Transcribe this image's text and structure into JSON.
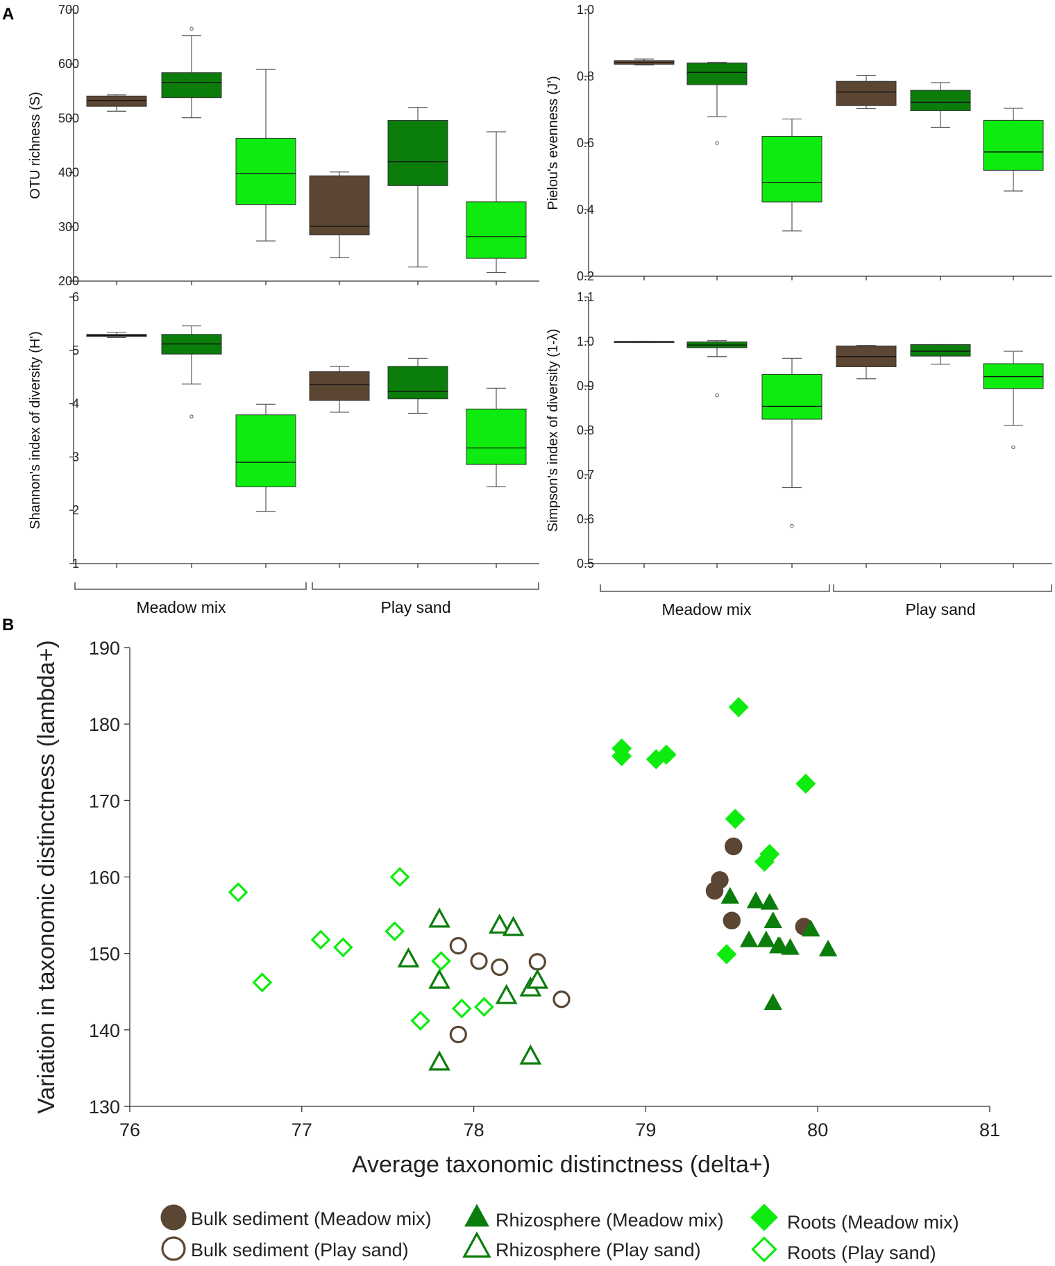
{
  "panel_labels": {
    "a": "A",
    "b": "B"
  },
  "groups": [
    "Meadow mix",
    "Play sand"
  ],
  "colors": {
    "bulk": "#5a4632",
    "rhizosphere": "#0b7d0b",
    "roots": "#0eeb0e",
    "axis": "#333333"
  },
  "chart_data": [
    {
      "id": "otu",
      "type": "box",
      "ylabel": "OTU richness (S)",
      "ylim": [
        200,
        700
      ],
      "yticks": [
        "200",
        "300",
        "400",
        "500",
        "600",
        "700"
      ],
      "tick_values": [
        200,
        300,
        400,
        500,
        600,
        700
      ],
      "boxes": [
        {
          "group": "Meadow mix",
          "category": "Bulk sediment",
          "min": 513,
          "q1": 522,
          "median": 533,
          "q3": 541,
          "max": 543,
          "outliers": []
        },
        {
          "group": "Meadow mix",
          "category": "Rhizosphere",
          "min": 501,
          "q1": 538,
          "median": 566,
          "q3": 584,
          "max": 652,
          "outliers": [
            665
          ]
        },
        {
          "group": "Meadow mix",
          "category": "Roots",
          "min": 274,
          "q1": 341,
          "median": 398,
          "q3": 463,
          "max": 590,
          "outliers": []
        },
        {
          "group": "Play sand",
          "category": "Bulk sediment",
          "min": 243,
          "q1": 285,
          "median": 301,
          "q3": 394,
          "max": 401,
          "outliers": []
        },
        {
          "group": "Play sand",
          "category": "Rhizosphere",
          "min": 226,
          "q1": 376,
          "median": 420,
          "q3": 496,
          "max": 520,
          "outliers": []
        },
        {
          "group": "Play sand",
          "category": "Roots",
          "min": 216,
          "q1": 242,
          "median": 282,
          "q3": 346,
          "max": 475,
          "outliers": []
        }
      ]
    },
    {
      "id": "pielou",
      "type": "box",
      "ylabel": "Pielou's evenness (J')",
      "ylim": [
        0.2,
        1.0
      ],
      "yticks": [
        "0.2",
        "0.4",
        "0.6",
        "0.8",
        "1.0"
      ],
      "tick_values": [
        0.2,
        0.4,
        0.6,
        0.8,
        1.0
      ],
      "boxes": [
        {
          "group": "Meadow mix",
          "category": "Bulk sediment",
          "min": 0.834,
          "q1": 0.836,
          "median": 0.842,
          "q3": 0.847,
          "max": 0.852,
          "outliers": []
        },
        {
          "group": "Meadow mix",
          "category": "Rhizosphere",
          "min": 0.679,
          "q1": 0.775,
          "median": 0.812,
          "q3": 0.84,
          "max": 0.842,
          "outliers": [
            0.6
          ]
        },
        {
          "group": "Meadow mix",
          "category": "Roots",
          "min": 0.336,
          "q1": 0.423,
          "median": 0.482,
          "q3": 0.62,
          "max": 0.672,
          "outliers": []
        },
        {
          "group": "Play sand",
          "category": "Bulk sediment",
          "min": 0.703,
          "q1": 0.712,
          "median": 0.753,
          "q3": 0.785,
          "max": 0.803,
          "outliers": []
        },
        {
          "group": "Play sand",
          "category": "Rhizosphere",
          "min": 0.647,
          "q1": 0.697,
          "median": 0.722,
          "q3": 0.758,
          "max": 0.781,
          "outliers": []
        },
        {
          "group": "Play sand",
          "category": "Roots",
          "min": 0.456,
          "q1": 0.518,
          "median": 0.573,
          "q3": 0.668,
          "max": 0.704,
          "outliers": []
        }
      ]
    },
    {
      "id": "shannon",
      "type": "box",
      "ylabel": "Shannon's index of diversity (H')",
      "ylim": [
        1,
        6
      ],
      "yticks": [
        "1",
        "2",
        "3",
        "4",
        "5",
        "6"
      ],
      "tick_values": [
        1,
        2,
        3,
        4,
        5,
        6
      ],
      "boxes": [
        {
          "group": "Meadow mix",
          "category": "Bulk sediment",
          "min": 5.24,
          "q1": 5.26,
          "median": 5.28,
          "q3": 5.3,
          "max": 5.34,
          "outliers": []
        },
        {
          "group": "Meadow mix",
          "category": "Rhizosphere",
          "min": 4.37,
          "q1": 4.93,
          "median": 5.12,
          "q3": 5.3,
          "max": 5.46,
          "outliers": [
            3.76
          ]
        },
        {
          "group": "Meadow mix",
          "category": "Roots",
          "min": 1.98,
          "q1": 2.44,
          "median": 2.9,
          "q3": 3.79,
          "max": 3.99,
          "outliers": []
        },
        {
          "group": "Play sand",
          "category": "Bulk sediment",
          "min": 3.84,
          "q1": 4.06,
          "median": 4.36,
          "q3": 4.6,
          "max": 4.7,
          "outliers": []
        },
        {
          "group": "Play sand",
          "category": "Rhizosphere",
          "min": 3.82,
          "q1": 4.09,
          "median": 4.23,
          "q3": 4.7,
          "max": 4.85,
          "outliers": []
        },
        {
          "group": "Play sand",
          "category": "Roots",
          "min": 2.44,
          "q1": 2.86,
          "median": 3.17,
          "q3": 3.9,
          "max": 4.29,
          "outliers": []
        }
      ]
    },
    {
      "id": "simpson",
      "type": "box",
      "ylabel": "Simpson's index of diversity (1-λ)",
      "ylim": [
        0.5,
        1.1
      ],
      "yticks": [
        "0.5",
        "0.6",
        "0.7",
        "0.8",
        "0.9",
        "1.0",
        "1.1"
      ],
      "tick_values": [
        0.5,
        0.6,
        0.7,
        0.8,
        0.9,
        1.0,
        1.1
      ],
      "boxes": [
        {
          "group": "Meadow mix",
          "category": "Bulk sediment",
          "min": 0.999,
          "q1": 0.999,
          "median": 1.0,
          "q3": 1.0,
          "max": 1.0,
          "outliers": []
        },
        {
          "group": "Meadow mix",
          "category": "Rhizosphere",
          "min": 0.966,
          "q1": 0.986,
          "median": 0.992,
          "q3": 0.999,
          "max": 1.002,
          "outliers": [
            0.879
          ]
        },
        {
          "group": "Meadow mix",
          "category": "Roots",
          "min": 0.671,
          "q1": 0.825,
          "median": 0.854,
          "q3": 0.926,
          "max": 0.962,
          "outliers": [
            0.585
          ]
        },
        {
          "group": "Play sand",
          "category": "Bulk sediment",
          "min": 0.916,
          "q1": 0.943,
          "median": 0.966,
          "q3": 0.99,
          "max": 0.991,
          "outliers": []
        },
        {
          "group": "Play sand",
          "category": "Rhizosphere",
          "min": 0.949,
          "q1": 0.967,
          "median": 0.978,
          "q3": 0.993,
          "max": 0.993,
          "outliers": []
        },
        {
          "group": "Play sand",
          "category": "Roots",
          "min": 0.811,
          "q1": 0.894,
          "median": 0.921,
          "q3": 0.95,
          "max": 0.978,
          "outliers": [
            0.762
          ]
        }
      ]
    },
    {
      "id": "taxonomic",
      "type": "scatter",
      "xlabel": "Average taxonomic distinctness (delta+)",
      "ylabel": "Variation in taxonomic distinctness (lambda+)",
      "xlim": [
        76,
        81
      ],
      "ylim": [
        130,
        190
      ],
      "xticks": [
        "76",
        "77",
        "78",
        "79",
        "80",
        "81"
      ],
      "x_tick_values": [
        76,
        77,
        78,
        79,
        80,
        81
      ],
      "yticks": [
        "130",
        "140",
        "150",
        "160",
        "170",
        "180",
        "190"
      ],
      "y_tick_values": [
        130,
        140,
        150,
        160,
        170,
        180,
        190
      ],
      "series": [
        {
          "name": "Bulk sediment (Meadow mix)",
          "marker": "circle",
          "filled": true,
          "color": "#5a4632",
          "x": [
            79.4,
            79.43,
            79.5,
            79.51,
            79.92
          ],
          "y": [
            158.2,
            159.6,
            154.3,
            164.0,
            153.5
          ]
        },
        {
          "name": "Bulk sediment (Play sand)",
          "marker": "circle",
          "filled": false,
          "color": "#5a4632",
          "x": [
            77.91,
            77.91,
            78.03,
            78.15,
            78.37,
            78.51
          ],
          "y": [
            151.0,
            139.4,
            149.0,
            148.2,
            148.9,
            144.0
          ]
        },
        {
          "name": "Rhizosphere (Meadow mix)",
          "marker": "triangle",
          "filled": true,
          "color": "#0b7d0b",
          "x": [
            79.49,
            79.6,
            79.64,
            79.7,
            79.72,
            79.74,
            79.74,
            79.77,
            79.78,
            79.84,
            79.96,
            80.06
          ],
          "y": [
            157.4,
            151.7,
            156.8,
            151.7,
            156.6,
            154.2,
            143.5,
            150.9,
            150.9,
            150.7,
            153.1,
            150.5
          ]
        },
        {
          "name": "Rhizosphere (Play sand)",
          "marker": "triangle",
          "filled": false,
          "color": "#0b7d0b",
          "x": [
            77.62,
            77.8,
            77.8,
            77.8,
            78.15,
            78.19,
            78.23,
            78.33,
            78.33,
            78.37
          ],
          "y": [
            149.2,
            154.4,
            146.4,
            135.7,
            153.6,
            144.4,
            153.3,
            145.4,
            136.5,
            146.4
          ]
        },
        {
          "name": "Roots (Meadow mix)",
          "marker": "diamond",
          "filled": true,
          "color": "#0eeb0e",
          "x": [
            78.86,
            78.86,
            79.06,
            79.12,
            79.47,
            79.52,
            79.54,
            79.69,
            79.72,
            79.93
          ],
          "y": [
            176.8,
            175.8,
            175.4,
            176.0,
            149.9,
            167.6,
            182.2,
            162.0,
            163.0,
            172.2
          ]
        },
        {
          "name": "Roots (Play sand)",
          "marker": "diamond",
          "filled": false,
          "color": "#0eeb0e",
          "x": [
            76.63,
            76.77,
            77.11,
            77.24,
            77.54,
            77.57,
            77.69,
            77.81,
            77.93,
            78.06
          ],
          "y": [
            158.0,
            146.2,
            151.8,
            150.8,
            152.9,
            160.0,
            141.2,
            149.0,
            142.8,
            143.0
          ]
        }
      ]
    }
  ]
}
